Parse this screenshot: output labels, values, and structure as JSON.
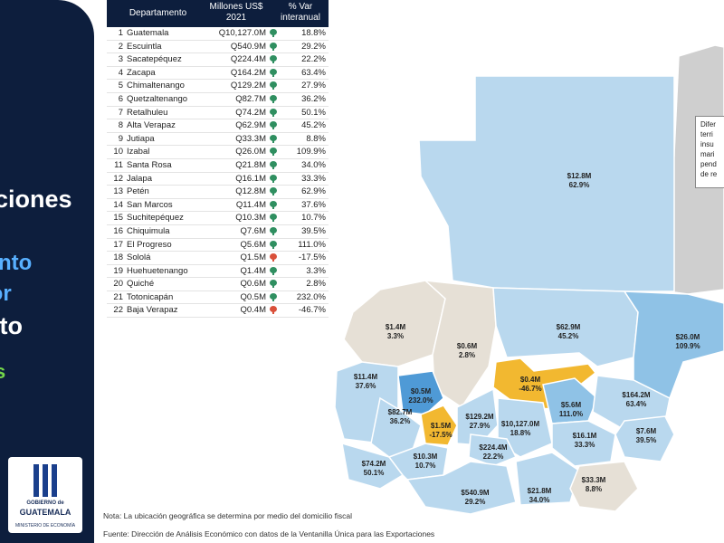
{
  "left_panel": {
    "title": "ciones",
    "sub1": "nto",
    "sub2": "por",
    "sub3": "mento",
    "sub4": "s",
    "logo_line1": "GOBIERNO de",
    "logo_line2": "GUATEMALA",
    "logo_line3": "MINISTERIO DE ECONOMÍA"
  },
  "table": {
    "headers": {
      "dept": "Departamento",
      "value": "Millones US$ 2021",
      "pct": "% Var interanual"
    },
    "rows": [
      {
        "rank": "1",
        "name": "Guatemala",
        "value": "Q10,127.0M",
        "pct": "18.8%",
        "trend": "up"
      },
      {
        "rank": "2",
        "name": "Escuintla",
        "value": "Q540.9M",
        "pct": "29.2%",
        "trend": "up"
      },
      {
        "rank": "3",
        "name": "Sacatepéquez",
        "value": "Q224.4M",
        "pct": "22.2%",
        "trend": "up"
      },
      {
        "rank": "4",
        "name": "Zacapa",
        "value": "Q164.2M",
        "pct": "63.4%",
        "trend": "up"
      },
      {
        "rank": "5",
        "name": "Chimaltenango",
        "value": "Q129.2M",
        "pct": "27.9%",
        "trend": "up"
      },
      {
        "rank": "6",
        "name": "Quetzaltenango",
        "value": "Q82.7M",
        "pct": "36.2%",
        "trend": "up"
      },
      {
        "rank": "7",
        "name": "Retalhuleu",
        "value": "Q74.2M",
        "pct": "50.1%",
        "trend": "up"
      },
      {
        "rank": "8",
        "name": "Alta Verapaz",
        "value": "Q62.9M",
        "pct": "45.2%",
        "trend": "up"
      },
      {
        "rank": "9",
        "name": "Jutiapa",
        "value": "Q33.3M",
        "pct": "8.8%",
        "trend": "up"
      },
      {
        "rank": "10",
        "name": "Izabal",
        "value": "Q26.0M",
        "pct": "109.9%",
        "trend": "up"
      },
      {
        "rank": "11",
        "name": "Santa Rosa",
        "value": "Q21.8M",
        "pct": "34.0%",
        "trend": "up"
      },
      {
        "rank": "12",
        "name": "Jalapa",
        "value": "Q16.1M",
        "pct": "33.3%",
        "trend": "up"
      },
      {
        "rank": "13",
        "name": "Petén",
        "value": "Q12.8M",
        "pct": "62.9%",
        "trend": "up"
      },
      {
        "rank": "14",
        "name": "San Marcos",
        "value": "Q11.4M",
        "pct": "37.6%",
        "trend": "up"
      },
      {
        "rank": "15",
        "name": "Suchitepéquez",
        "value": "Q10.3M",
        "pct": "10.7%",
        "trend": "up"
      },
      {
        "rank": "16",
        "name": "Chiquimula",
        "value": "Q7.6M",
        "pct": "39.5%",
        "trend": "up"
      },
      {
        "rank": "17",
        "name": "El Progreso",
        "value": "Q5.6M",
        "pct": "111.0%",
        "trend": "up"
      },
      {
        "rank": "18",
        "name": "Sololá",
        "value": "Q1.5M",
        "pct": "-17.5%",
        "trend": "down"
      },
      {
        "rank": "19",
        "name": "Huehuetenango",
        "value": "Q1.4M",
        "pct": "3.3%",
        "trend": "up"
      },
      {
        "rank": "20",
        "name": "Quiché",
        "value": "Q0.6M",
        "pct": "2.8%",
        "trend": "up"
      },
      {
        "rank": "21",
        "name": "Totonicapán",
        "value": "Q0.5M",
        "pct": "232.0%",
        "trend": "up"
      },
      {
        "rank": "22",
        "name": "Baja Verapaz",
        "value": "Q0.4M",
        "pct": "-46.7%",
        "trend": "down"
      }
    ]
  },
  "map_labels": [
    {
      "key": "peten",
      "value": "$12.8M",
      "pct": "62.9%"
    },
    {
      "key": "huehuetenango",
      "value": "$1.4M",
      "pct": "3.3%"
    },
    {
      "key": "quiche",
      "value": "$0.6M",
      "pct": "2.8%"
    },
    {
      "key": "alta_verapaz",
      "value": "$62.9M",
      "pct": "45.2%"
    },
    {
      "key": "izabal",
      "value": "$26.0M",
      "pct": "109.9%"
    },
    {
      "key": "san_marcos",
      "value": "$11.4M",
      "pct": "37.6%"
    },
    {
      "key": "totonicapan",
      "value": "$0.5M",
      "pct": "232.0%"
    },
    {
      "key": "baja_verapaz",
      "value": "$0.4M",
      "pct": "-46.7%"
    },
    {
      "key": "zacapa",
      "value": "$164.2M",
      "pct": "63.4%"
    },
    {
      "key": "quetzaltenango",
      "value": "$82.7M",
      "pct": "36.2%"
    },
    {
      "key": "solola",
      "value": "$1.5M",
      "pct": "-17.5%"
    },
    {
      "key": "chimaltenango",
      "value": "$129.2M",
      "pct": "27.9%"
    },
    {
      "key": "guatemala",
      "value": "$10,127.0M",
      "pct": "18.8%"
    },
    {
      "key": "el_progreso",
      "value": "$5.6M",
      "pct": "111.0%"
    },
    {
      "key": "jalapa",
      "value": "$16.1M",
      "pct": "33.3%"
    },
    {
      "key": "chiquimula",
      "value": "$7.6M",
      "pct": "39.5%"
    },
    {
      "key": "retalhuleu",
      "value": "$74.2M",
      "pct": "50.1%"
    },
    {
      "key": "suchitepequez",
      "value": "$10.3M",
      "pct": "10.7%"
    },
    {
      "key": "sacatepequez",
      "value": "$224.4M",
      "pct": "22.2%"
    },
    {
      "key": "escuintla",
      "value": "$540.9M",
      "pct": "29.2%"
    },
    {
      "key": "santa_rosa",
      "value": "$21.8M",
      "pct": "34.0%"
    },
    {
      "key": "jutiapa",
      "value": "$33.3M",
      "pct": "8.8%"
    }
  ],
  "belize_note": {
    "lines": [
      "Difer",
      "terri",
      "insu",
      "mari",
      "pend",
      "de re"
    ]
  },
  "footnote": "Nota: La ubicación geográfica se determina por medio del domicilio fiscal",
  "source": "Fuente: Dirección de Análisis Económico con datos de la Ventanilla Única para las Exportaciones",
  "colors": {
    "panel": "#0d1e3d",
    "accent_blue": "#58b0ff",
    "accent_green": "#74d84a",
    "up_icon": "#2f8f60",
    "down_icon": "#d9503a",
    "map_light_blue": "#b9d8ee",
    "map_mid_blue": "#8fc2e6",
    "map_strong_blue": "#4f9ad6",
    "map_beige": "#e6e0d6",
    "map_orange": "#f2b830",
    "map_grey": "#cfcfcf"
  }
}
